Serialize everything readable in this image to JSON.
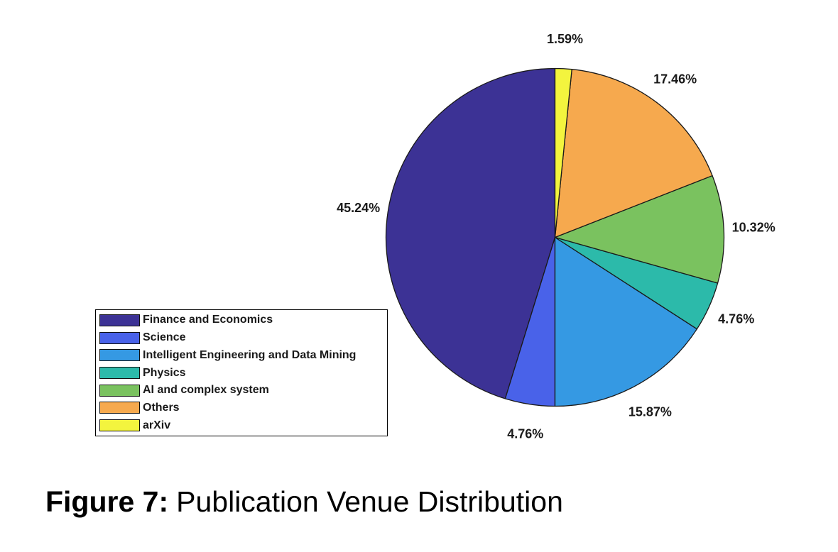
{
  "figure": {
    "caption_label": "Figure 7:",
    "caption_text": "Publication Venue Distribution",
    "background_color": "#ffffff"
  },
  "chart_data": {
    "type": "pie",
    "title": "Publication Venue Distribution",
    "start_angle_deg": 90,
    "direction": "counterclockwise",
    "label_style": "percent-outside",
    "legend_position": "left-bottom",
    "edge_color": "#1a1a1a",
    "label_text_color": "#1a1a1a",
    "slices": [
      {
        "label": "Finance and Economics",
        "percent": 45.24,
        "display": "45.24%",
        "color": "#3c3295"
      },
      {
        "label": "Science",
        "percent": 4.76,
        "display": "4.76%",
        "color": "#4962e9"
      },
      {
        "label": "Intelligent Engineering and Data Mining",
        "percent": 15.87,
        "display": "15.87%",
        "color": "#3599e3"
      },
      {
        "label": "Physics",
        "percent": 4.76,
        "display": "4.76%",
        "color": "#2cbaaa"
      },
      {
        "label": "AI and complex system",
        "percent": 10.32,
        "display": "10.32%",
        "color": "#7ac25f"
      },
      {
        "label": "Others",
        "percent": 17.46,
        "display": "17.46%",
        "color": "#f6a94e"
      },
      {
        "label": "arXiv",
        "percent": 1.59,
        "display": "1.59%",
        "color": "#f3f43e"
      }
    ]
  }
}
